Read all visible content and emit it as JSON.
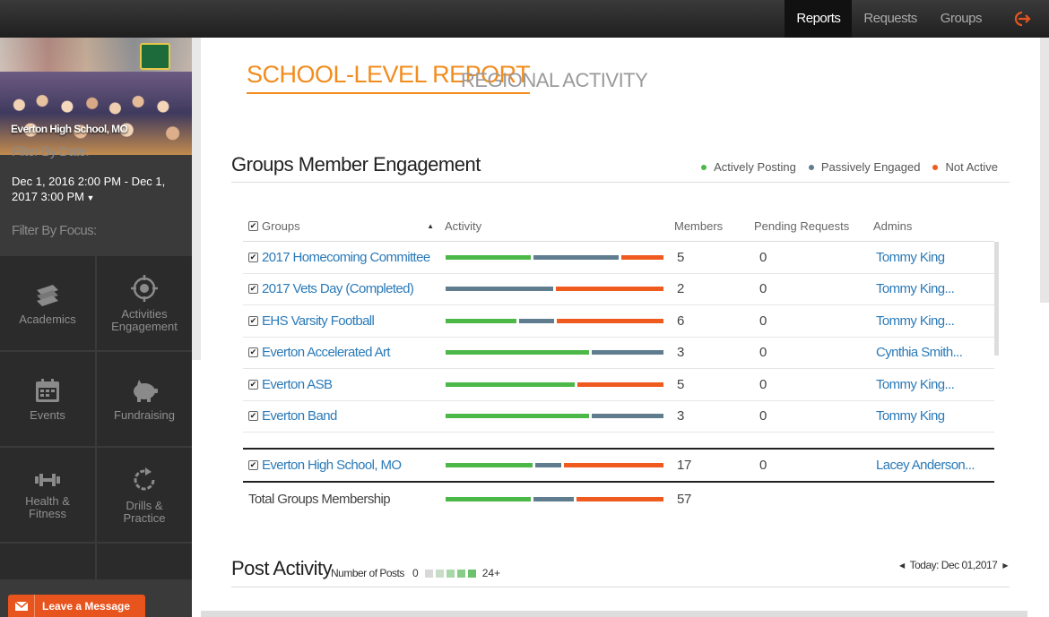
{
  "topnav": {
    "items": [
      {
        "label": "Reports",
        "active": true
      },
      {
        "label": "Requests",
        "active": false
      },
      {
        "label": "Groups",
        "active": false
      }
    ],
    "logout_icon": "logout-icon"
  },
  "sidebar": {
    "school_name": "Everton High School, MO",
    "filter_date_label": "Filter By Date:",
    "date_range": "Dec 1, 2016 2:00 PM - Dec 1, 2017 3:00 PM",
    "filter_focus_label": "Filter By Focus:",
    "focus_tiles": [
      {
        "label": "Academics",
        "icon": "books-icon"
      },
      {
        "label": "Activities Engagement",
        "icon": "target-icon"
      },
      {
        "label": "Events",
        "icon": "calendar-icon"
      },
      {
        "label": "Fundraising",
        "icon": "piggy-bank-icon"
      },
      {
        "label": "Health & Fitness",
        "icon": "dumbbell-icon"
      },
      {
        "label": "Drills & Practice",
        "icon": "refresh-icon"
      }
    ],
    "leave_message": "Leave a Message"
  },
  "tabs": {
    "active": "SCHOOL-LEVEL REPORT",
    "inactive": "REGIONAL ACTIVITY"
  },
  "engagement": {
    "title": "Groups Member Engagement",
    "legend": [
      {
        "label": "Actively Posting",
        "color": "#4cb848"
      },
      {
        "label": "Passively Engaged",
        "color": "#5f7d8e"
      },
      {
        "label": "Not Active",
        "color": "#ef5a1f"
      }
    ],
    "columns": {
      "groups": "Groups",
      "activity": "Activity",
      "members": "Members",
      "pending": "Pending Requests",
      "admins": "Admins"
    },
    "rows": [
      {
        "name": "2017 Homecoming Committee",
        "members": "5",
        "pending": "0",
        "admin": "Tommy King",
        "activity": [
          0.4,
          0.4,
          0.2
        ]
      },
      {
        "name": "2017 Vets Day (Completed)",
        "members": "2",
        "pending": "0",
        "admin": "Tommy King...",
        "activity": [
          0,
          0.5,
          0.5
        ]
      },
      {
        "name": "EHS Varsity Football",
        "members": "6",
        "pending": "0",
        "admin": "Tommy King...",
        "activity": [
          0.333,
          0.167,
          0.5
        ]
      },
      {
        "name": "Everton Accelerated Art",
        "members": "3",
        "pending": "0",
        "admin": "Cynthia Smith...",
        "activity": [
          0.667,
          0.333,
          0
        ]
      },
      {
        "name": "Everton ASB",
        "members": "5",
        "pending": "0",
        "admin": "Tommy King...",
        "activity": [
          0.6,
          0,
          0.4
        ]
      },
      {
        "name": "Everton Band",
        "members": "3",
        "pending": "0",
        "admin": "Tommy King",
        "activity": [
          0.667,
          0.333,
          0
        ]
      }
    ],
    "school_row": {
      "name": "Everton High School, MO",
      "members": "17",
      "pending": "0",
      "admin": "Lacey Anderson...",
      "activity": [
        0.41,
        0.12,
        0.47
      ]
    },
    "total_row": {
      "label": "Total Groups Membership",
      "members": "57",
      "activity": [
        0.4,
        0.19,
        0.41
      ]
    }
  },
  "post_activity": {
    "title": "Post Activity",
    "subtitle": "Number of Posts",
    "scale_min": "0",
    "scale_max": "24+",
    "scale_colors": [
      "#d8d8d8",
      "#c8dcc8",
      "#a8d8a8",
      "#88cc88",
      "#6cc26c"
    ],
    "today": "Today: Dec 01,2017"
  }
}
